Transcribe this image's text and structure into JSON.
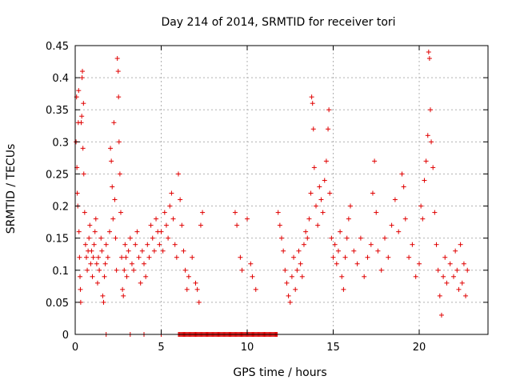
{
  "chart_data": {
    "type": "scatter",
    "title": "Day 214 of 2014, SRMTID for receiver tori",
    "xlabel": "GPS time / hours",
    "ylabel": "SRMTID / TECUs",
    "xlim": [
      0,
      24
    ],
    "ylim": [
      0,
      0.45
    ],
    "xticks": [
      0,
      5,
      10,
      15,
      20
    ],
    "xtick_labels": [
      "0",
      "5",
      "10",
      "15",
      "20"
    ],
    "yticks": [
      0,
      0.05,
      0.1,
      0.15,
      0.2,
      0.25,
      0.3,
      0.35,
      0.4,
      0.45
    ],
    "ytick_labels": [
      "0",
      "0.05",
      "0.1",
      "0.15",
      "0.2",
      "0.25",
      "0.3",
      "0.35",
      "0.4",
      "0.45"
    ],
    "grid": true,
    "marker": "plus",
    "color": "#e00000",
    "series": [
      {
        "name": "tori",
        "points": [
          [
            0.05,
            0.3
          ],
          [
            0.08,
            0.37
          ],
          [
            0.1,
            0.26
          ],
          [
            0.12,
            0.22
          ],
          [
            0.15,
            0.2
          ],
          [
            0.18,
            0.33
          ],
          [
            0.2,
            0.38
          ],
          [
            0.22,
            0.16
          ],
          [
            0.25,
            0.12
          ],
          [
            0.28,
            0.09
          ],
          [
            0.3,
            0.07
          ],
          [
            0.32,
            0.05
          ],
          [
            0.35,
            0.33
          ],
          [
            0.38,
            0.34
          ],
          [
            0.4,
            0.4
          ],
          [
            0.42,
            0.41
          ],
          [
            0.45,
            0.29
          ],
          [
            0.48,
            0.36
          ],
          [
            0.5,
            0.25
          ],
          [
            0.55,
            0.19
          ],
          [
            0.6,
            0.14
          ],
          [
            0.65,
            0.12
          ],
          [
            0.7,
            0.1
          ],
          [
            0.75,
            0.13
          ],
          [
            0.8,
            0.15
          ],
          [
            0.85,
            0.17
          ],
          [
            0.9,
            0.11
          ],
          [
            0.95,
            0.13
          ],
          [
            1.0,
            0.09
          ],
          [
            1.05,
            0.12
          ],
          [
            1.1,
            0.14
          ],
          [
            1.15,
            0.16
          ],
          [
            1.2,
            0.18
          ],
          [
            1.25,
            0.11
          ],
          [
            1.3,
            0.08
          ],
          [
            1.35,
            0.12
          ],
          [
            1.4,
            0.1
          ],
          [
            1.5,
            0.15
          ],
          [
            1.55,
            0.13
          ],
          [
            1.6,
            0.06
          ],
          [
            1.65,
            0.05
          ],
          [
            1.7,
            0.09
          ],
          [
            1.75,
            0.11
          ],
          [
            1.8,
            0.14
          ],
          [
            1.9,
            0.12
          ],
          [
            2.0,
            0.16
          ],
          [
            2.05,
            0.29
          ],
          [
            2.1,
            0.27
          ],
          [
            2.15,
            0.23
          ],
          [
            2.2,
            0.18
          ],
          [
            2.25,
            0.33
          ],
          [
            2.3,
            0.21
          ],
          [
            2.35,
            0.15
          ],
          [
            2.4,
            0.1
          ],
          [
            2.45,
            0.43
          ],
          [
            2.5,
            0.41
          ],
          [
            2.52,
            0.37
          ],
          [
            2.55,
            0.3
          ],
          [
            2.6,
            0.25
          ],
          [
            2.65,
            0.19
          ],
          [
            2.7,
            0.12
          ],
          [
            2.75,
            0.07
          ],
          [
            2.8,
            0.06
          ],
          [
            2.85,
            0.1
          ],
          [
            2.9,
            0.14
          ],
          [
            2.95,
            0.12
          ],
          [
            3.0,
            0.09
          ],
          [
            3.1,
            0.13
          ],
          [
            3.2,
            0.15
          ],
          [
            3.3,
            0.11
          ],
          [
            3.4,
            0.1
          ],
          [
            3.5,
            0.14
          ],
          [
            3.6,
            0.16
          ],
          [
            3.7,
            0.12
          ],
          [
            3.8,
            0.08
          ],
          [
            3.9,
            0.13
          ],
          [
            4.0,
            0.11
          ],
          [
            4.1,
            0.09
          ],
          [
            4.2,
            0.14
          ],
          [
            4.3,
            0.12
          ],
          [
            4.4,
            0.17
          ],
          [
            4.5,
            0.15
          ],
          [
            4.6,
            0.13
          ],
          [
            4.7,
            0.18
          ],
          [
            4.8,
            0.16
          ],
          [
            4.9,
            0.14
          ],
          [
            5.0,
            0.16
          ],
          [
            5.1,
            0.13
          ],
          [
            5.2,
            0.19
          ],
          [
            5.3,
            0.17
          ],
          [
            5.4,
            0.15
          ],
          [
            5.5,
            0.2
          ],
          [
            5.6,
            0.22
          ],
          [
            5.7,
            0.18
          ],
          [
            5.8,
            0.14
          ],
          [
            5.9,
            0.12
          ],
          [
            6.0,
            0.25
          ],
          [
            6.1,
            0.21
          ],
          [
            6.2,
            0.17
          ],
          [
            6.3,
            0.13
          ],
          [
            6.4,
            0.1
          ],
          [
            6.5,
            0.07
          ],
          [
            6.6,
            0.09
          ],
          [
            6.8,
            0.12
          ],
          [
            7.0,
            0.08
          ],
          [
            7.1,
            0.07
          ],
          [
            7.2,
            0.05
          ],
          [
            7.3,
            0.17
          ],
          [
            7.4,
            0.19
          ],
          [
            9.3,
            0.19
          ],
          [
            9.4,
            0.17
          ],
          [
            9.6,
            0.12
          ],
          [
            9.7,
            0.1
          ],
          [
            10.0,
            0.18
          ],
          [
            10.2,
            0.11
          ],
          [
            10.3,
            0.09
          ],
          [
            10.5,
            0.07
          ],
          [
            11.8,
            0.19
          ],
          [
            11.9,
            0.17
          ],
          [
            12.0,
            0.15
          ],
          [
            12.1,
            0.13
          ],
          [
            12.2,
            0.1
          ],
          [
            12.3,
            0.08
          ],
          [
            12.4,
            0.06
          ],
          [
            12.5,
            0.05
          ],
          [
            12.6,
            0.09
          ],
          [
            12.7,
            0.12
          ],
          [
            12.8,
            0.07
          ],
          [
            12.9,
            0.1
          ],
          [
            13.0,
            0.13
          ],
          [
            13.1,
            0.11
          ],
          [
            13.2,
            0.09
          ],
          [
            13.3,
            0.14
          ],
          [
            13.4,
            0.16
          ],
          [
            13.5,
            0.15
          ],
          [
            13.6,
            0.18
          ],
          [
            13.7,
            0.22
          ],
          [
            13.75,
            0.37
          ],
          [
            13.8,
            0.36
          ],
          [
            13.85,
            0.32
          ],
          [
            13.9,
            0.26
          ],
          [
            14.0,
            0.2
          ],
          [
            14.1,
            0.17
          ],
          [
            14.2,
            0.23
          ],
          [
            14.3,
            0.21
          ],
          [
            14.4,
            0.19
          ],
          [
            14.5,
            0.24
          ],
          [
            14.6,
            0.27
          ],
          [
            14.7,
            0.32
          ],
          [
            14.75,
            0.35
          ],
          [
            14.8,
            0.22
          ],
          [
            14.9,
            0.15
          ],
          [
            15.0,
            0.12
          ],
          [
            15.1,
            0.14
          ],
          [
            15.2,
            0.11
          ],
          [
            15.3,
            0.13
          ],
          [
            15.4,
            0.16
          ],
          [
            15.5,
            0.09
          ],
          [
            15.6,
            0.07
          ],
          [
            15.7,
            0.12
          ],
          [
            15.8,
            0.15
          ],
          [
            15.9,
            0.18
          ],
          [
            16.0,
            0.2
          ],
          [
            16.2,
            0.13
          ],
          [
            16.4,
            0.11
          ],
          [
            16.6,
            0.15
          ],
          [
            16.8,
            0.09
          ],
          [
            17.0,
            0.12
          ],
          [
            17.2,
            0.14
          ],
          [
            17.3,
            0.22
          ],
          [
            17.4,
            0.27
          ],
          [
            17.5,
            0.19
          ],
          [
            17.6,
            0.13
          ],
          [
            17.8,
            0.1
          ],
          [
            18.0,
            0.15
          ],
          [
            18.2,
            0.12
          ],
          [
            18.4,
            0.17
          ],
          [
            18.6,
            0.21
          ],
          [
            18.8,
            0.16
          ],
          [
            19.0,
            0.25
          ],
          [
            19.1,
            0.23
          ],
          [
            19.2,
            0.18
          ],
          [
            19.4,
            0.12
          ],
          [
            19.6,
            0.14
          ],
          [
            19.8,
            0.09
          ],
          [
            20.0,
            0.11
          ],
          [
            20.1,
            0.2
          ],
          [
            20.2,
            0.18
          ],
          [
            20.3,
            0.24
          ],
          [
            20.4,
            0.27
          ],
          [
            20.5,
            0.31
          ],
          [
            20.55,
            0.44
          ],
          [
            20.6,
            0.43
          ],
          [
            20.65,
            0.35
          ],
          [
            20.7,
            0.3
          ],
          [
            20.8,
            0.26
          ],
          [
            20.9,
            0.19
          ],
          [
            21.0,
            0.14
          ],
          [
            21.1,
            0.1
          ],
          [
            21.2,
            0.06
          ],
          [
            21.3,
            0.03
          ],
          [
            21.4,
            0.09
          ],
          [
            21.5,
            0.12
          ],
          [
            21.6,
            0.08
          ],
          [
            21.8,
            0.11
          ],
          [
            22.0,
            0.09
          ],
          [
            22.1,
            0.13
          ],
          [
            22.2,
            0.1
          ],
          [
            22.3,
            0.07
          ],
          [
            22.4,
            0.14
          ],
          [
            22.5,
            0.08
          ],
          [
            22.6,
            0.11
          ],
          [
            22.7,
            0.06
          ],
          [
            22.8,
            0.1
          ]
        ]
      }
    ],
    "zero_band": {
      "x_from": 6.0,
      "x_to": 11.8,
      "y": 0
    },
    "zero_isolated_x": [
      1.8,
      3.2,
      4.0,
      5.0
    ]
  }
}
